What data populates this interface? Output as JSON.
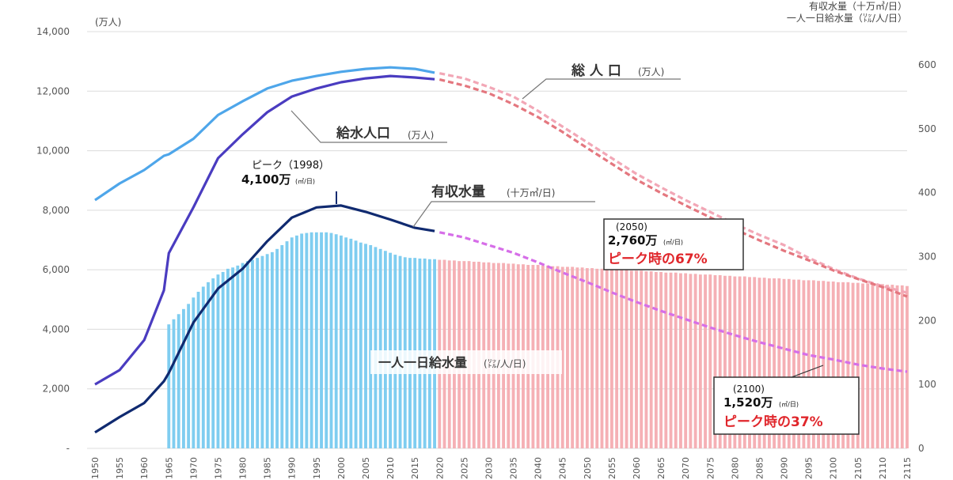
{
  "chart_data": {
    "type": "combo",
    "y_unit": "(万人)",
    "y2_units": [
      "有収水量（十万㎥/日）",
      "一人一日給水量（㍑/人/日）"
    ],
    "xlim": [
      1950,
      2115
    ],
    "xticks": [
      1950,
      1955,
      1960,
      1965,
      1970,
      1975,
      1980,
      1985,
      1990,
      1995,
      2000,
      2005,
      2010,
      2015,
      2020,
      2025,
      2030,
      2035,
      2040,
      2045,
      2050,
      2055,
      2060,
      2065,
      2070,
      2075,
      2080,
      2085,
      2090,
      2095,
      2100,
      2105,
      2110,
      2115
    ],
    "ylim": [
      0,
      14000
    ],
    "yticks": [
      {
        "value": 0,
        "label": "-"
      },
      {
        "value": 2000,
        "label": "2,000"
      },
      {
        "value": 4000,
        "label": "4,000"
      },
      {
        "value": 6000,
        "label": "6,000"
      },
      {
        "value": 8000,
        "label": "8,000"
      },
      {
        "value": 10000,
        "label": "10,000"
      },
      {
        "value": 12000,
        "label": "12,000"
      },
      {
        "value": 14000,
        "label": "14,000"
      }
    ],
    "y2lim": [
      0,
      652
    ],
    "y2ticks": [
      0,
      100,
      200,
      300,
      400,
      500,
      600
    ],
    "grid": true,
    "projection_from": 2020,
    "x": [
      1950,
      1955,
      1960,
      1964,
      1965,
      1970,
      1975,
      1980,
      1985,
      1990,
      1995,
      2000,
      2005,
      2010,
      2015,
      2019,
      2020,
      2025,
      2030,
      2035,
      2040,
      2045,
      2050,
      2055,
      2060,
      2065,
      2070,
      2075,
      2080,
      2085,
      2090,
      2095,
      2100,
      2105,
      2110,
      2115
    ],
    "series": [
      {
        "name": "総 人 口",
        "unit": "(万人)",
        "color": "#4ea6ea",
        "projection_color": "#f2a7b6",
        "values": [
          8340,
          8900,
          9350,
          9830,
          9880,
          10400,
          11200,
          11660,
          12090,
          12350,
          12510,
          12650,
          12750,
          12800,
          12750,
          12620,
          12600,
          12430,
          12140,
          11820,
          11340,
          10810,
          10280,
          9750,
          9220,
          8770,
          8340,
          7940,
          7540,
          7170,
          6830,
          6400,
          6030,
          5710,
          5450,
          5230
        ]
      },
      {
        "name": "給水人口",
        "unit": "(万人)",
        "color": "#4a3cc0",
        "projection_color": "#e4777f",
        "values": [
          2150,
          2630,
          3640,
          5310,
          6560,
          8100,
          9750,
          10550,
          11290,
          11820,
          12090,
          12300,
          12430,
          12510,
          12460,
          12400,
          12390,
          12190,
          11930,
          11560,
          11130,
          10630,
          10090,
          9560,
          9030,
          8580,
          8160,
          7760,
          7360,
          6990,
          6640,
          6320,
          5980,
          5690,
          5420,
          5100
        ]
      },
      {
        "name": "有収水量",
        "unit": "(十万㎥/日)",
        "axis": "y2",
        "color": "#102a70",
        "projection_color": "#d66ee8",
        "values": [
          25,
          49,
          71,
          105,
          118,
          197,
          250,
          281,
          324,
          361,
          377,
          380,
          370,
          358,
          345,
          340,
          338,
          330,
          318,
          306,
          291,
          275,
          260,
          244,
          229,
          215,
          202,
          189,
          177,
          166,
          156,
          146,
          139,
          131,
          125,
          120
        ]
      }
    ],
    "bars": {
      "name": "一人一日給水量",
      "unit": "(㍑/人/日)",
      "axis": "y2",
      "color": "#7fcdf0",
      "projection_color": "#f5b0b5",
      "x": [
        1965,
        1966,
        1967,
        1968,
        1969,
        1970,
        1971,
        1972,
        1973,
        1974,
        1975,
        1976,
        1977,
        1978,
        1979,
        1980,
        1981,
        1982,
        1983,
        1984,
        1985,
        1986,
        1987,
        1988,
        1989,
        1990,
        1991,
        1992,
        1993,
        1994,
        1995,
        1996,
        1997,
        1998,
        1999,
        2000,
        2001,
        2002,
        2003,
        2004,
        2005,
        2006,
        2007,
        2008,
        2009,
        2010,
        2011,
        2012,
        2013,
        2014,
        2015,
        2016,
        2017,
        2018,
        2019,
        2020,
        2021,
        2022,
        2023,
        2024,
        2025,
        2026,
        2027,
        2028,
        2029,
        2030,
        2031,
        2032,
        2033,
        2034,
        2035,
        2036,
        2037,
        2038,
        2039,
        2040,
        2041,
        2042,
        2043,
        2044,
        2045,
        2046,
        2047,
        2048,
        2049,
        2050,
        2051,
        2052,
        2053,
        2054,
        2055,
        2056,
        2057,
        2058,
        2059,
        2060,
        2061,
        2062,
        2063,
        2064,
        2065,
        2066,
        2067,
        2068,
        2069,
        2070,
        2071,
        2072,
        2073,
        2074,
        2075,
        2076,
        2077,
        2078,
        2079,
        2080,
        2081,
        2082,
        2083,
        2084,
        2085,
        2086,
        2087,
        2088,
        2089,
        2090,
        2091,
        2092,
        2093,
        2094,
        2095,
        2096,
        2097,
        2098,
        2099,
        2100,
        2101,
        2102,
        2103,
        2104,
        2105,
        2106,
        2107,
        2108,
        2109,
        2110,
        2111,
        2112,
        2113,
        2114,
        2115
      ],
      "values": [
        194,
        202,
        210,
        218,
        226,
        236,
        245,
        253,
        260,
        266,
        272,
        276,
        281,
        283,
        286,
        290,
        293,
        295,
        298,
        301,
        304,
        307,
        312,
        318,
        324,
        330,
        333,
        336,
        337,
        338,
        338,
        338,
        338,
        337,
        335,
        333,
        330,
        328,
        325,
        322,
        320,
        318,
        315,
        312,
        309,
        306,
        303,
        301,
        299,
        298,
        298,
        297,
        297,
        296,
        296,
        295,
        295,
        294,
        294,
        293,
        293,
        293,
        292,
        292,
        291,
        291,
        290,
        290,
        290,
        289,
        289,
        288,
        288,
        287,
        287,
        287,
        286,
        286,
        285,
        285,
        284,
        284,
        284,
        283,
        283,
        282,
        282,
        281,
        281,
        281,
        280,
        280,
        279,
        279,
        278,
        278,
        278,
        277,
        277,
        276,
        276,
        275,
        275,
        275,
        274,
        274,
        273,
        273,
        272,
        272,
        272,
        271,
        271,
        270,
        270,
        269,
        269,
        269,
        268,
        268,
        267,
        267,
        266,
        266,
        266,
        265,
        265,
        264,
        264,
        263,
        263,
        263,
        262,
        262,
        261,
        261,
        260,
        260,
        260,
        259,
        259,
        258,
        258,
        257,
        257,
        257,
        256,
        256,
        255,
        255,
        254
      ]
    },
    "annotations": [
      {
        "label": "ピーク（1998）",
        "value": "4,100万",
        "unit": "(㎥/日)"
      },
      {
        "label": "(2050)",
        "value": "2,760万",
        "unit": "(㎥/日)",
        "share": "ピーク時の67%"
      },
      {
        "label": "(2100)",
        "value": "1,520万",
        "unit": "(㎥/日)",
        "share": "ピーク時の37%"
      }
    ]
  }
}
